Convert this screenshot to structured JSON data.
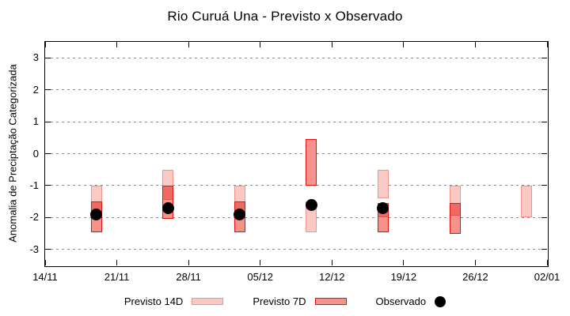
{
  "page": {
    "background": "#ffffff"
  },
  "chart_data": {
    "type": "bar",
    "subtype": "forecast-range-boxes-with-observed-dots",
    "title": "Rio Curuá Una - Previsto x Observado",
    "ylabel": "Anomalia de Preciptação Categorizada",
    "xlabel": "",
    "ylim": [
      -3.5,
      3.5
    ],
    "yticks": [
      3,
      2,
      1,
      0,
      -1,
      -2,
      -3
    ],
    "xtick_labels": [
      "14/11",
      "21/11",
      "28/11",
      "05/12",
      "12/12",
      "19/12",
      "26/12",
      "02/01"
    ],
    "x_tick_interval_days": 7,
    "grid": "horizontal-dotted",
    "legend_position": "below-plot",
    "legend": [
      {
        "label": "Previsto 14D",
        "swatch": "light-pink-box"
      },
      {
        "label": "Previsto 7D",
        "swatch": "red-box"
      },
      {
        "label": "Observado",
        "swatch": "black-dot"
      }
    ],
    "groups": [
      {
        "date": "19/11",
        "day": 5,
        "previsto_14d": [
          -1.0,
          -2.0
        ],
        "previsto_7d": [
          -1.5,
          -2.45
        ],
        "dark_overlap_until": -2.0,
        "observado": -1.9
      },
      {
        "date": "26/11",
        "day": 12,
        "previsto_14d": [
          -0.5,
          -1.45
        ],
        "previsto_7d": [
          -1.0,
          -2.05
        ],
        "dark_overlap_until": -1.45,
        "observado": -1.7
      },
      {
        "date": "03/12",
        "day": 19,
        "previsto_14d": [
          -1.0,
          -2.0
        ],
        "previsto_7d": [
          -1.5,
          -2.45
        ],
        "dark_overlap_until": -2.0,
        "observado": -1.9
      },
      {
        "date": "10/12",
        "day": 26,
        "previsto_14d": [
          -1.5,
          -2.45
        ],
        "previsto_7d": [
          0.45,
          -1.0
        ],
        "dark_overlap_until": null,
        "observado": -1.6
      },
      {
        "date": "17/12",
        "day": 33,
        "previsto_14d": [
          -0.5,
          -1.4
        ],
        "previsto_7d": [
          -1.55,
          -2.45
        ],
        "dark_overlap_until": -2.0,
        "observado": -1.7
      },
      {
        "date": "24/12",
        "day": 40,
        "previsto_14d": [
          -1.0,
          -1.95
        ],
        "previsto_7d": [
          -1.55,
          -2.5
        ],
        "dark_overlap_until": -1.95,
        "observado": null
      },
      {
        "date": "31/12",
        "day": 47,
        "previsto_14d": [
          -1.0,
          -2.0
        ],
        "previsto_7d": null,
        "dark_overlap_until": null,
        "observado": null
      }
    ],
    "colors": {
      "previsto_14d_fill": "#fac9c3",
      "previsto_14d_border": "#f0938d",
      "previsto_7d_fill": "#f5928b",
      "previsto_7d_overlap_fill": "#ee6a63",
      "previsto_7d_border": "#e3120b",
      "observado_dot": "#000000",
      "gridline": "#8c8c8c",
      "axis": "#000000"
    }
  }
}
